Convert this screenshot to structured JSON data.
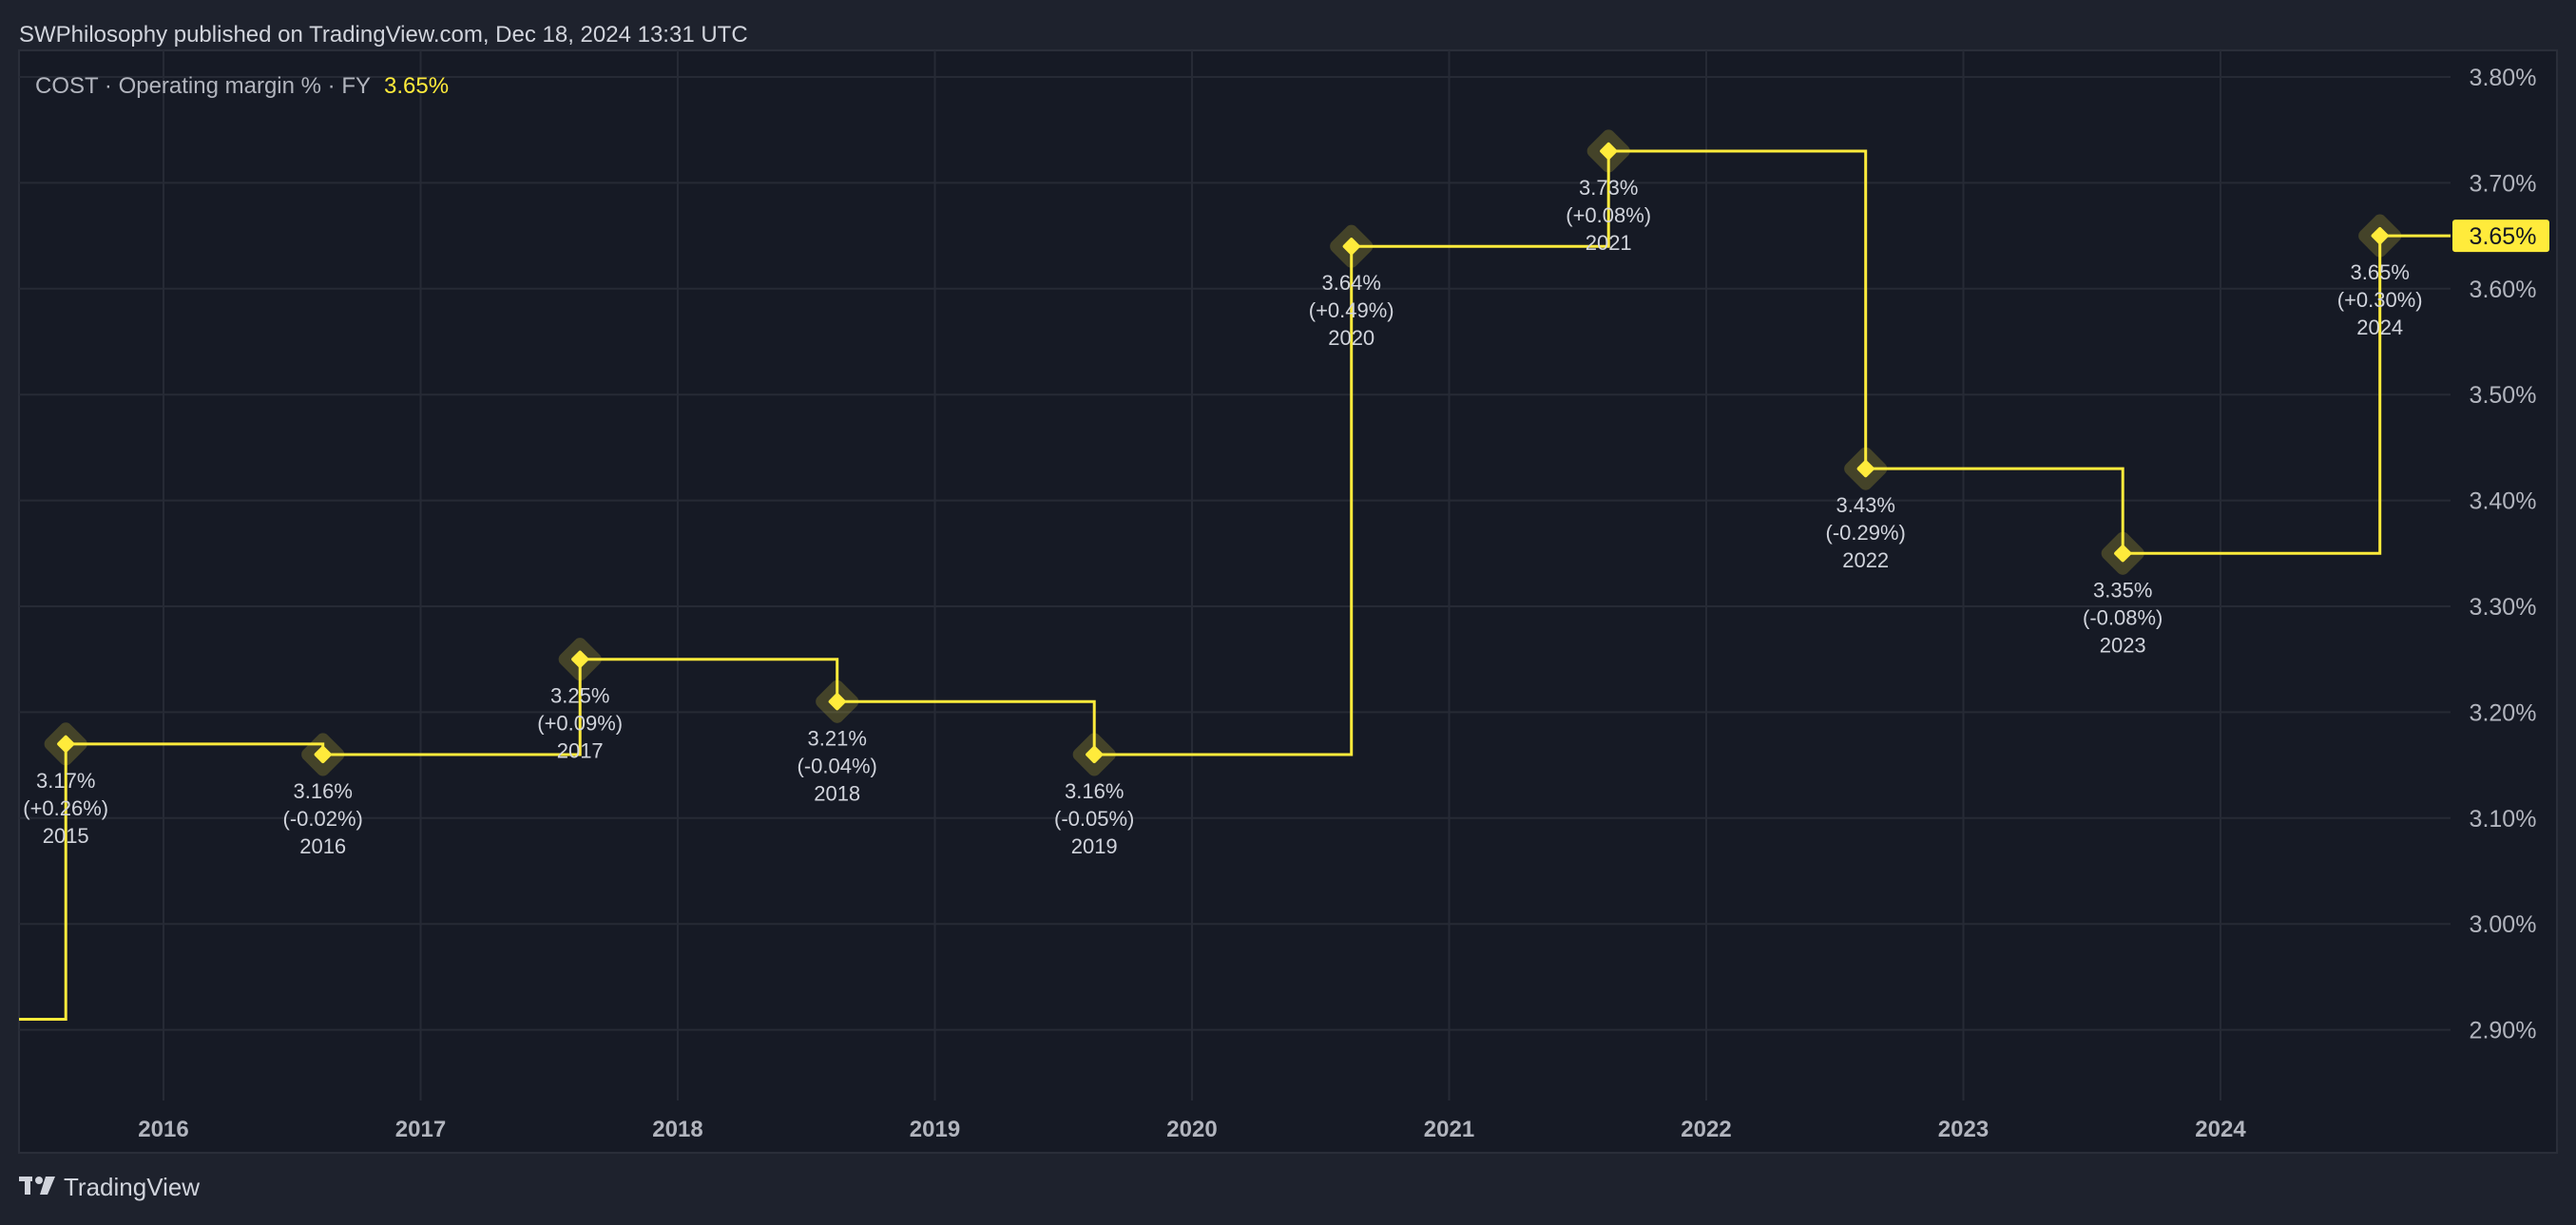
{
  "header": {
    "published": "SWPhilosophy published on TradingView.com, Dec 18, 2024 13:31 UTC"
  },
  "legend": {
    "title": "COST · Operating margin % · FY",
    "value": "3.65%"
  },
  "footer": {
    "brand": "TradingView"
  },
  "colors": {
    "line": "#ffeb3b",
    "background": "#1e222d",
    "plot": "#161a25",
    "grid": "#262a35",
    "text": "#b2b5be"
  },
  "chart_data": {
    "type": "line",
    "style": "step",
    "title": "COST · Operating margin % · FY",
    "ylabel": "Operating margin %",
    "ylim": [
      2.82,
      3.84
    ],
    "y_ticks": [
      "2.90%",
      "3.00%",
      "3.10%",
      "3.20%",
      "3.30%",
      "3.40%",
      "3.50%",
      "3.60%",
      "3.70%",
      "3.80%"
    ],
    "y_tick_values": [
      2.9,
      3.0,
      3.1,
      3.2,
      3.3,
      3.4,
      3.5,
      3.6,
      3.7,
      3.8
    ],
    "x_ticks": [
      "2016",
      "2017",
      "2018",
      "2019",
      "2020",
      "2021",
      "2022",
      "2023",
      "2024"
    ],
    "prior_value": 2.91,
    "points": [
      {
        "year": "2015",
        "value": 3.17,
        "label": "3.17%",
        "change": "(+0.26%)"
      },
      {
        "year": "2016",
        "value": 3.16,
        "label": "3.16%",
        "change": "(-0.02%)"
      },
      {
        "year": "2017",
        "value": 3.25,
        "label": "3.25%",
        "change": "(+0.09%)"
      },
      {
        "year": "2018",
        "value": 3.21,
        "label": "3.21%",
        "change": "(-0.04%)"
      },
      {
        "year": "2019",
        "value": 3.16,
        "label": "3.16%",
        "change": "(-0.05%)"
      },
      {
        "year": "2020",
        "value": 3.64,
        "label": "3.64%",
        "change": "(+0.49%)"
      },
      {
        "year": "2021",
        "value": 3.73,
        "label": "3.73%",
        "change": "(+0.08%)"
      },
      {
        "year": "2022",
        "value": 3.43,
        "label": "3.43%",
        "change": "(-0.29%)"
      },
      {
        "year": "2023",
        "value": 3.35,
        "label": "3.35%",
        "change": "(-0.08%)"
      },
      {
        "year": "2024",
        "value": 3.65,
        "label": "3.65%",
        "change": "(+0.30%)"
      }
    ],
    "last_value_badge": "3.65%"
  }
}
